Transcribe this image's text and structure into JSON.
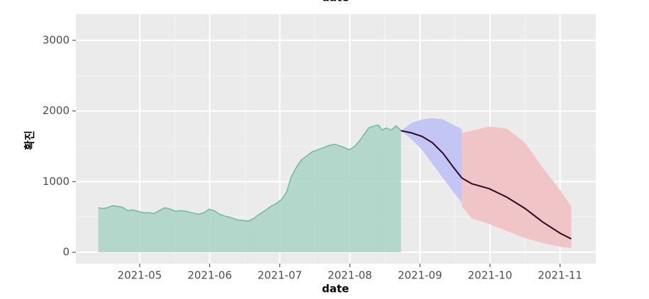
{
  "top_label": "date",
  "chart_data": {
    "type": "area",
    "x_label": "date",
    "y_label": "확진",
    "xlim": [
      4.09,
      11.51
    ],
    "xticks": [
      {
        "value": 5,
        "label": "2021-05"
      },
      {
        "value": 6,
        "label": "2021-06"
      },
      {
        "value": 7,
        "label": "2021-07"
      },
      {
        "value": 8,
        "label": "2021-08"
      },
      {
        "value": 9,
        "label": "2021-09"
      },
      {
        "value": 10,
        "label": "2021-10"
      },
      {
        "value": 11,
        "label": "2021-11"
      }
    ],
    "ylim": [
      -160,
      3370
    ],
    "yticks": [
      0,
      1000,
      2000,
      3000
    ],
    "grid": true,
    "series": [
      {
        "type": "area",
        "color": "#a9d3c5",
        "x": [
          4.41,
          4.47,
          4.54,
          4.61,
          4.68,
          4.75,
          4.83,
          4.9,
          4.98,
          5.05,
          5.13,
          5.21,
          5.28,
          5.36,
          5.44,
          5.51,
          5.59,
          5.66,
          5.74,
          5.84,
          5.92,
          5.99,
          6.06,
          6.14,
          6.22,
          6.31,
          6.39,
          6.47,
          6.55,
          6.63,
          6.71,
          6.79,
          6.87,
          6.95,
          7.03,
          7.1,
          7.16,
          7.24,
          7.31,
          7.38,
          7.46,
          7.54,
          7.62,
          7.7,
          7.78,
          7.84,
          7.93,
          7.99,
          8.07,
          8.14,
          8.21,
          8.27,
          8.35,
          8.41,
          8.46,
          8.52,
          8.59,
          8.66,
          8.73
        ],
        "values": [
          630,
          620,
          630,
          660,
          650,
          640,
          590,
          600,
          580,
          560,
          560,
          550,
          590,
          630,
          610,
          580,
          590,
          580,
          560,
          540,
          560,
          610,
          590,
          540,
          510,
          490,
          460,
          450,
          440,
          480,
          540,
          590,
          650,
          690,
          750,
          860,
          1060,
          1210,
          1310,
          1360,
          1420,
          1450,
          1480,
          1510,
          1530,
          1510,
          1480,
          1450,
          1500,
          1580,
          1680,
          1760,
          1790,
          1800,
          1730,
          1760,
          1730,
          1790,
          1720
        ]
      },
      {
        "type": "band",
        "color": "#c3c5f4",
        "x": [
          8.73,
          8.88,
          9.03,
          9.18,
          9.33,
          9.48,
          9.6
        ],
        "lower": [
          1720,
          1600,
          1450,
          1250,
          1050,
          850,
          700
        ],
        "upper": [
          1720,
          1830,
          1880,
          1900,
          1880,
          1800,
          1740
        ]
      },
      {
        "type": "band",
        "color": "#f1c4c7",
        "x": [
          9.6,
          9.74,
          9.99,
          10.24,
          10.5,
          10.75,
          11.0,
          11.16
        ],
        "lower": [
          650,
          480,
          400,
          300,
          200,
          130,
          80,
          60
        ],
        "upper": [
          1690,
          1720,
          1780,
          1750,
          1550,
          1200,
          880,
          650
        ]
      },
      {
        "type": "line",
        "color": "#2b0b1c",
        "x": [
          8.73,
          8.88,
          9.03,
          9.18,
          9.33,
          9.48,
          9.6,
          9.74,
          9.99,
          10.24,
          10.5,
          10.75,
          11.0,
          11.16
        ],
        "values": [
          1720,
          1690,
          1640,
          1550,
          1400,
          1200,
          1050,
          970,
          900,
          780,
          620,
          430,
          270,
          190
        ]
      }
    ]
  }
}
